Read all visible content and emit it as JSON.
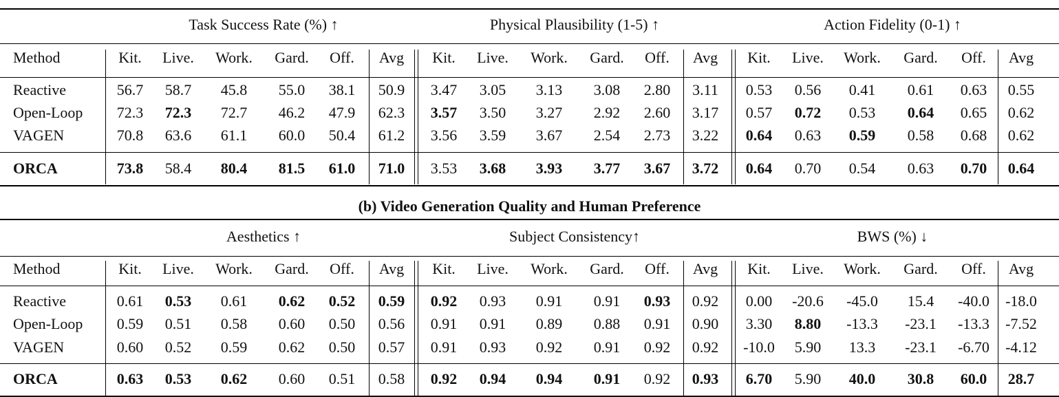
{
  "panels": [
    {
      "id": "a",
      "caption": "",
      "method_header": "Method",
      "column_labels": [
        "Kit.",
        "Live.",
        "Work.",
        "Gard.",
        "Off.",
        "Avg"
      ],
      "groups": [
        {
          "title": "Task Success Rate (%) ↑"
        },
        {
          "title": "Physical Plausibility (1-5) ↑"
        },
        {
          "title": "Action Fidelity (0-1) ↑"
        }
      ],
      "rows": [
        {
          "method": "Reactive",
          "method_bold": false,
          "cells": [
            [
              "56.7",
              0
            ],
            [
              "58.7",
              0
            ],
            [
              "45.8",
              0
            ],
            [
              "55.0",
              0
            ],
            [
              "38.1",
              0
            ],
            [
              "50.9",
              0
            ],
            [
              "3.47",
              0
            ],
            [
              "3.05",
              0
            ],
            [
              "3.13",
              0
            ],
            [
              "3.08",
              0
            ],
            [
              "2.80",
              0
            ],
            [
              "3.11",
              0
            ],
            [
              "0.53",
              0
            ],
            [
              "0.56",
              0
            ],
            [
              "0.41",
              0
            ],
            [
              "0.61",
              0
            ],
            [
              "0.63",
              0
            ],
            [
              "0.55",
              0
            ]
          ]
        },
        {
          "method": "Open-Loop",
          "method_bold": false,
          "cells": [
            [
              "72.3",
              0
            ],
            [
              "72.3",
              1
            ],
            [
              "72.7",
              0
            ],
            [
              "46.2",
              0
            ],
            [
              "47.9",
              0
            ],
            [
              "62.3",
              0
            ],
            [
              "3.57",
              1
            ],
            [
              "3.50",
              0
            ],
            [
              "3.27",
              0
            ],
            [
              "2.92",
              0
            ],
            [
              "2.60",
              0
            ],
            [
              "3.17",
              0
            ],
            [
              "0.57",
              0
            ],
            [
              "0.72",
              1
            ],
            [
              "0.53",
              0
            ],
            [
              "0.64",
              1
            ],
            [
              "0.65",
              0
            ],
            [
              "0.62",
              0
            ]
          ]
        },
        {
          "method": "VAGEN",
          "method_bold": false,
          "cells": [
            [
              "70.8",
              0
            ],
            [
              "63.6",
              0
            ],
            [
              "61.1",
              0
            ],
            [
              "60.0",
              0
            ],
            [
              "50.4",
              0
            ],
            [
              "61.2",
              0
            ],
            [
              "3.56",
              0
            ],
            [
              "3.59",
              0
            ],
            [
              "3.67",
              0
            ],
            [
              "2.54",
              0
            ],
            [
              "2.73",
              0
            ],
            [
              "3.22",
              0
            ],
            [
              "0.64",
              1
            ],
            [
              "0.63",
              0
            ],
            [
              "0.59",
              1
            ],
            [
              "0.58",
              0
            ],
            [
              "0.68",
              0
            ],
            [
              "0.62",
              0
            ]
          ]
        },
        {
          "method": "ORCA",
          "method_bold": true,
          "cells": [
            [
              "73.8",
              1
            ],
            [
              "58.4",
              0
            ],
            [
              "80.4",
              1
            ],
            [
              "81.5",
              1
            ],
            [
              "61.0",
              1
            ],
            [
              "71.0",
              1
            ],
            [
              "3.53",
              0
            ],
            [
              "3.68",
              1
            ],
            [
              "3.93",
              1
            ],
            [
              "3.77",
              1
            ],
            [
              "3.67",
              1
            ],
            [
              "3.72",
              1
            ],
            [
              "0.64",
              1
            ],
            [
              "0.70",
              0
            ],
            [
              "0.54",
              0
            ],
            [
              "0.63",
              0
            ],
            [
              "0.70",
              1
            ],
            [
              "0.64",
              1
            ]
          ]
        }
      ]
    },
    {
      "id": "b",
      "caption": "(b) Video Generation Quality and Human Preference",
      "method_header": "Method",
      "column_labels": [
        "Kit.",
        "Live.",
        "Work.",
        "Gard.",
        "Off.",
        "Avg"
      ],
      "groups": [
        {
          "title": "Aesthetics ↑"
        },
        {
          "title": "Subject Consistency↑"
        },
        {
          "title": "BWS (%) ↓"
        }
      ],
      "rows": [
        {
          "method": "Reactive",
          "method_bold": false,
          "cells": [
            [
              "0.61",
              0
            ],
            [
              "0.53",
              1
            ],
            [
              "0.61",
              0
            ],
            [
              "0.62",
              1
            ],
            [
              "0.52",
              1
            ],
            [
              "0.59",
              1
            ],
            [
              "0.92",
              1
            ],
            [
              "0.93",
              0
            ],
            [
              "0.91",
              0
            ],
            [
              "0.91",
              0
            ],
            [
              "0.93",
              1
            ],
            [
              "0.92",
              0
            ],
            [
              "0.00",
              0
            ],
            [
              "-20.6",
              0
            ],
            [
              "-45.0",
              0
            ],
            [
              "15.4",
              0
            ],
            [
              "-40.0",
              0
            ],
            [
              "-18.0",
              0
            ]
          ]
        },
        {
          "method": "Open-Loop",
          "method_bold": false,
          "cells": [
            [
              "0.59",
              0
            ],
            [
              "0.51",
              0
            ],
            [
              "0.58",
              0
            ],
            [
              "0.60",
              0
            ],
            [
              "0.50",
              0
            ],
            [
              "0.56",
              0
            ],
            [
              "0.91",
              0
            ],
            [
              "0.91",
              0
            ],
            [
              "0.89",
              0
            ],
            [
              "0.88",
              0
            ],
            [
              "0.91",
              0
            ],
            [
              "0.90",
              0
            ],
            [
              "3.30",
              0
            ],
            [
              "8.80",
              1
            ],
            [
              "-13.3",
              0
            ],
            [
              "-23.1",
              0
            ],
            [
              "-13.3",
              0
            ],
            [
              "-7.52",
              0
            ]
          ]
        },
        {
          "method": "VAGEN",
          "method_bold": false,
          "cells": [
            [
              "0.60",
              0
            ],
            [
              "0.52",
              0
            ],
            [
              "0.59",
              0
            ],
            [
              "0.62",
              0
            ],
            [
              "0.50",
              0
            ],
            [
              "0.57",
              0
            ],
            [
              "0.91",
              0
            ],
            [
              "0.93",
              0
            ],
            [
              "0.92",
              0
            ],
            [
              "0.91",
              0
            ],
            [
              "0.92",
              0
            ],
            [
              "0.92",
              0
            ],
            [
              "-10.0",
              0
            ],
            [
              "5.90",
              0
            ],
            [
              "13.3",
              0
            ],
            [
              "-23.1",
              0
            ],
            [
              "-6.70",
              0
            ],
            [
              "-4.12",
              0
            ]
          ]
        },
        {
          "method": "ORCA",
          "method_bold": true,
          "cells": [
            [
              "0.63",
              1
            ],
            [
              "0.53",
              1
            ],
            [
              "0.62",
              1
            ],
            [
              "0.60",
              0
            ],
            [
              "0.51",
              0
            ],
            [
              "0.58",
              0
            ],
            [
              "0.92",
              1
            ],
            [
              "0.94",
              1
            ],
            [
              "0.94",
              1
            ],
            [
              "0.91",
              1
            ],
            [
              "0.92",
              0
            ],
            [
              "0.93",
              1
            ],
            [
              "6.70",
              1
            ],
            [
              "5.90",
              0
            ],
            [
              "40.0",
              1
            ],
            [
              "30.8",
              1
            ],
            [
              "60.0",
              1
            ],
            [
              "28.7",
              1
            ]
          ]
        }
      ]
    }
  ]
}
